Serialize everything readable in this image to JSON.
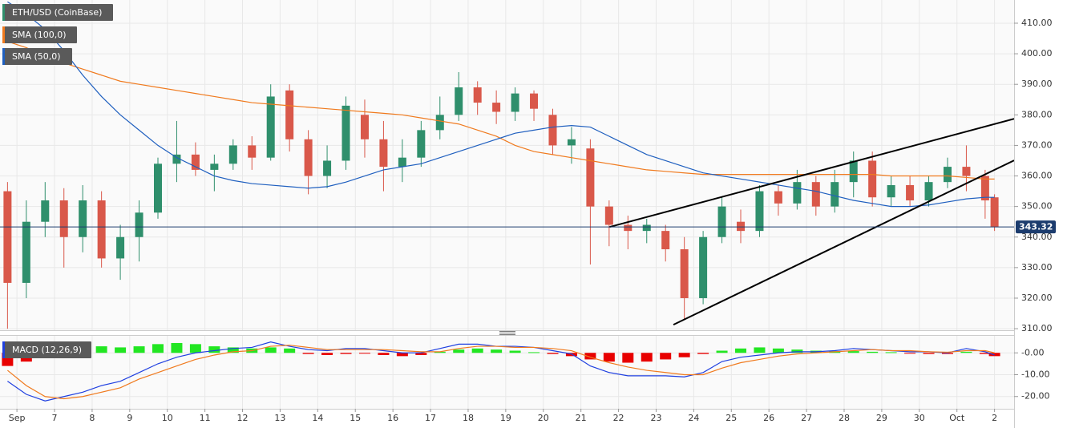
{
  "chart_data": [
    {
      "type": "candlestick",
      "name": "ETH/USD (CoinBase)",
      "up_color": "#2f8f6c",
      "down_color": "#d9584a",
      "x": [
        -0.25,
        0.25,
        0.75,
        1.25,
        1.75,
        2.25,
        2.75,
        3.25,
        3.75,
        4.25,
        4.75,
        5.25,
        5.75,
        6.25,
        6.75,
        7.25,
        7.75,
        8.25,
        8.75,
        9.25,
        9.75,
        10.25,
        10.75,
        11.25,
        11.75,
        12.25,
        12.75,
        13.25,
        13.75,
        14.25,
        14.75,
        15.25,
        15.75,
        16.25,
        16.75,
        17.25,
        17.75,
        18.25,
        18.75,
        19.25,
        19.75,
        20.25,
        20.75,
        21.25,
        21.75,
        22.25,
        22.75,
        23.25,
        23.75,
        24.25,
        24.75,
        25.25,
        25.75,
        26.0
      ],
      "open": [
        355,
        325,
        345,
        352,
        340,
        352,
        333,
        340,
        348,
        364,
        367,
        362,
        364,
        370,
        366,
        388,
        372,
        360,
        365,
        380,
        372,
        363,
        366,
        375,
        380,
        389,
        384,
        381,
        387,
        380,
        370,
        369,
        350,
        344,
        342,
        342,
        336,
        320,
        340,
        345,
        342,
        355,
        351,
        358,
        350,
        358,
        365,
        353,
        357,
        352,
        358,
        363,
        360,
        353
      ],
      "high": [
        358,
        352,
        358,
        356,
        357,
        355,
        344,
        352,
        366,
        378,
        371,
        367,
        372,
        373,
        390,
        390,
        375,
        370,
        386,
        385,
        378,
        372,
        378,
        386,
        394,
        391,
        388,
        389,
        388,
        382,
        376,
        372,
        352,
        347,
        346,
        344,
        340,
        342,
        353,
        349,
        357,
        357,
        362,
        360,
        362,
        368,
        368,
        360,
        360,
        360,
        366,
        370,
        362,
        354
      ],
      "low": [
        310,
        320,
        340,
        330,
        335,
        330,
        326,
        332,
        346,
        358,
        360,
        355,
        362,
        362,
        365,
        368,
        354,
        356,
        362,
        366,
        355,
        358,
        363,
        372,
        378,
        380,
        377,
        378,
        378,
        367,
        364,
        331,
        337,
        336,
        338,
        332,
        313,
        318,
        338,
        338,
        340,
        347,
        349,
        347,
        348,
        353,
        350,
        350,
        350,
        350,
        356,
        355,
        346,
        342
      ],
      "close": [
        325,
        345,
        352,
        340,
        352,
        333,
        340,
        348,
        364,
        367,
        362,
        364,
        370,
        366,
        386,
        372,
        360,
        365,
        383,
        372,
        363,
        366,
        375,
        380,
        389,
        384,
        381,
        387,
        382,
        370,
        372,
        350,
        344,
        342,
        344,
        336,
        320,
        340,
        350,
        342,
        355,
        351,
        358,
        350,
        358,
        365,
        353,
        357,
        352,
        358,
        363,
        360,
        352,
        343.32
      ],
      "series": [
        {
          "name": "SMA (100,0)",
          "color": "#f07a1e",
          "values": [
            404,
            402,
            399,
            397,
            395,
            393,
            391,
            390,
            389,
            388,
            387,
            386,
            385,
            384,
            383.5,
            383,
            382.5,
            382,
            381.5,
            381,
            380.5,
            380,
            379,
            378,
            377,
            375,
            373,
            370,
            368,
            367,
            366,
            365,
            364,
            363,
            362,
            361.5,
            361,
            360.5,
            360.5,
            360.5,
            360.5,
            360.5,
            360.5,
            360.5,
            360.5,
            360.5,
            360.5,
            360,
            360,
            360,
            360,
            359.5,
            359,
            359
          ]
        },
        {
          "name": "SMA (50,0)",
          "color": "#1f5fbf",
          "values": [
            417,
            413,
            408,
            401,
            393,
            386,
            380,
            375,
            370,
            366,
            363,
            360,
            358.5,
            357.5,
            357,
            356.5,
            356,
            356.5,
            358,
            360,
            362,
            363,
            364,
            366,
            368,
            370,
            372,
            374,
            375,
            376,
            376.5,
            376,
            373,
            370,
            367,
            365,
            363,
            361,
            360,
            359,
            358,
            357,
            356,
            355,
            353.5,
            352,
            351,
            350,
            350,
            350.5,
            351.5,
            352.5,
            353,
            353
          ]
        }
      ],
      "trendlines": [
        {
          "x": [
            15.76,
            26.52
          ],
          "y": [
            343.3,
            378.7
          ]
        },
        {
          "x": [
            17.46,
            26.52
          ],
          "y": [
            311.3,
            365.1
          ]
        }
      ],
      "last_price": 343.32,
      "xlim": [
        -0.45,
        26.52
      ],
      "ylim": [
        309.5,
        417.6
      ],
      "yticks": [
        {
          "value": 310,
          "label": "310.00"
        },
        {
          "value": 320,
          "label": "320.00"
        },
        {
          "value": 330,
          "label": "330.00"
        },
        {
          "value": 340,
          "label": "340.00"
        },
        {
          "value": 350,
          "label": "350.00"
        },
        {
          "value": 360,
          "label": "360.00"
        },
        {
          "value": 370,
          "label": "370.00"
        },
        {
          "value": 380,
          "label": "380.00"
        },
        {
          "value": 390,
          "label": "390.00"
        },
        {
          "value": 400,
          "label": "400.00"
        },
        {
          "value": 410,
          "label": "410.00"
        }
      ],
      "grid": true
    },
    {
      "type": "macd",
      "name": "MACD (12,26,9)",
      "x": [
        -0.25,
        0.25,
        0.75,
        1.25,
        1.75,
        2.25,
        2.75,
        3.25,
        3.75,
        4.25,
        4.75,
        5.25,
        5.75,
        6.25,
        6.75,
        7.25,
        7.75,
        8.25,
        8.75,
        9.25,
        9.75,
        10.25,
        10.75,
        11.25,
        11.75,
        12.25,
        12.75,
        13.25,
        13.75,
        14.25,
        14.75,
        15.25,
        15.75,
        16.25,
        16.75,
        17.25,
        17.75,
        18.25,
        18.75,
        19.25,
        19.75,
        20.25,
        20.75,
        21.25,
        21.75,
        22.25,
        22.75,
        23.25,
        23.75,
        24.25,
        24.75,
        25.25,
        25.75,
        26.0
      ],
      "pos_color": "#22e622",
      "neg_color": "#e80000",
      "histogram": [
        -6,
        -4,
        -1,
        1,
        2,
        3,
        2.5,
        3,
        4,
        4.5,
        4,
        3,
        2.5,
        2,
        2.5,
        2,
        -0.5,
        -1,
        -0.5,
        -0.3,
        -1,
        -1.5,
        -1,
        0.5,
        1.5,
        2,
        1.5,
        1,
        0.3,
        -0.5,
        -1.5,
        -3,
        -4,
        -4.5,
        -4,
        -3,
        -2,
        -0.5,
        1,
        2,
        2.5,
        2,
        1.5,
        1,
        0.8,
        0.8,
        0.5,
        0.3,
        -0.3,
        -0.5,
        -0.5,
        0.5,
        -0.5,
        -1.5
      ],
      "series": [
        {
          "color": "#2040e0",
          "values": [
            -13,
            -19,
            -22,
            -20,
            -18,
            -15,
            -13,
            -9,
            -5,
            -2,
            0,
            1,
            2,
            2.5,
            5,
            3,
            1.5,
            1,
            2,
            2,
            1,
            0,
            0,
            2,
            4,
            4,
            3,
            3,
            2.5,
            1,
            -0.5,
            -6,
            -9,
            -10.5,
            -10.5,
            -10.5,
            -11,
            -9,
            -4,
            -2,
            -1,
            0,
            0.5,
            0.5,
            1,
            2,
            1.5,
            1,
            0.5,
            0.5,
            0,
            2,
            0.5,
            -1
          ]
        },
        {
          "color": "#f07a1e",
          "values": [
            -8,
            -15,
            -20,
            -21,
            -20,
            -18,
            -16,
            -12,
            -9,
            -6,
            -3,
            -1,
            0.5,
            1,
            3,
            3.5,
            2.5,
            1.5,
            1.5,
            1.5,
            1.5,
            1,
            0.5,
            0.5,
            2,
            3,
            3,
            2.5,
            2.5,
            2,
            1,
            -2,
            -4.5,
            -6.5,
            -8,
            -9,
            -10,
            -10,
            -7,
            -4.5,
            -3,
            -1.5,
            -0.5,
            0,
            0.5,
            1,
            1.5,
            1,
            1,
            0.5,
            0.3,
            1,
            1,
            0
          ]
        }
      ],
      "xlim": [
        -0.45,
        26.52
      ],
      "ylim": [
        -25.6,
        7.8
      ],
      "yticks": [
        {
          "value": 0,
          "label": "-0.00"
        },
        {
          "value": -10,
          "label": "-10.00"
        },
        {
          "value": -20,
          "label": "-20.00"
        }
      ],
      "xticks": [
        {
          "value": 0,
          "label": "Sep"
        },
        {
          "value": 1,
          "label": "7"
        },
        {
          "value": 2,
          "label": "8"
        },
        {
          "value": 3,
          "label": "9"
        },
        {
          "value": 4,
          "label": "10"
        },
        {
          "value": 5,
          "label": "11"
        },
        {
          "value": 6,
          "label": "12"
        },
        {
          "value": 7,
          "label": "13"
        },
        {
          "value": 8,
          "label": "14"
        },
        {
          "value": 9,
          "label": "15"
        },
        {
          "value": 10,
          "label": "16"
        },
        {
          "value": 11,
          "label": "17"
        },
        {
          "value": 12,
          "label": "18"
        },
        {
          "value": 13,
          "label": "19"
        },
        {
          "value": 14,
          "label": "20"
        },
        {
          "value": 15,
          "label": "21"
        },
        {
          "value": 16,
          "label": "22"
        },
        {
          "value": 17,
          "label": "23"
        },
        {
          "value": 18,
          "label": "24"
        },
        {
          "value": 19,
          "label": "25"
        },
        {
          "value": 20,
          "label": "26"
        },
        {
          "value": 21,
          "label": "27"
        },
        {
          "value": 22,
          "label": "28"
        },
        {
          "value": 23,
          "label": "29"
        },
        {
          "value": 24,
          "label": "30"
        },
        {
          "value": 25,
          "label": "Oct"
        },
        {
          "value": 26,
          "label": "2"
        }
      ],
      "grid": true
    }
  ]
}
